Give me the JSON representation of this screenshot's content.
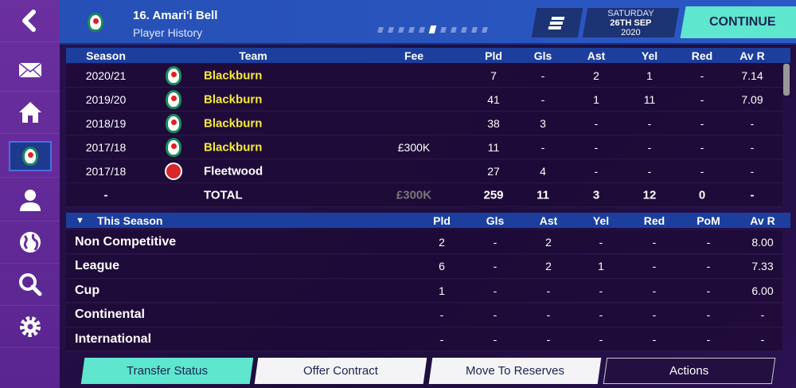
{
  "header": {
    "title": "16. Amari'i Bell",
    "subtitle": "Player History",
    "date_day": "SATURDAY",
    "date_main": "26TH SEP",
    "date_year": "2020",
    "continue_label": "CONTINUE",
    "page_dots_total": 11,
    "page_dots_active": 6
  },
  "sidebar": {
    "items": [
      {
        "icon": "back-icon"
      },
      {
        "icon": "mail-icon"
      },
      {
        "icon": "home-icon"
      },
      {
        "icon": "club-badge-icon",
        "selected": true
      },
      {
        "icon": "person-icon"
      },
      {
        "icon": "globe-icon"
      },
      {
        "icon": "search-icon"
      },
      {
        "icon": "gear-icon"
      }
    ]
  },
  "history": {
    "headers": [
      "Season",
      "Team",
      "Fee",
      "Pld",
      "Gls",
      "Ast",
      "Yel",
      "Red",
      "Av R"
    ],
    "rows": [
      {
        "season": "2020/21",
        "team": "Blackburn",
        "own": true,
        "fee": "",
        "pld": "7",
        "gls": "-",
        "ast": "2",
        "yel": "1",
        "red": "-",
        "avr": "7.14"
      },
      {
        "season": "2019/20",
        "team": "Blackburn",
        "own": true,
        "fee": "",
        "pld": "41",
        "gls": "-",
        "ast": "1",
        "yel": "11",
        "red": "-",
        "avr": "7.09"
      },
      {
        "season": "2018/19",
        "team": "Blackburn",
        "own": true,
        "fee": "",
        "pld": "38",
        "gls": "3",
        "ast": "-",
        "yel": "-",
        "red": "-",
        "avr": "-"
      },
      {
        "season": "2017/18",
        "team": "Blackburn",
        "own": true,
        "fee": "£300K",
        "pld": "11",
        "gls": "-",
        "ast": "-",
        "yel": "-",
        "red": "-",
        "avr": "-"
      },
      {
        "season": "2017/18",
        "team": "Fleetwood",
        "own": false,
        "fee": "",
        "pld": "27",
        "gls": "4",
        "ast": "-",
        "yel": "-",
        "red": "-",
        "avr": "-"
      }
    ],
    "total": {
      "season": "-",
      "team": "TOTAL",
      "fee": "£300K",
      "pld": "259",
      "gls": "11",
      "ast": "3",
      "yel": "12",
      "red": "0",
      "avr": "-"
    }
  },
  "this_season": {
    "title": "This Season",
    "headers": [
      "Pld",
      "Gls",
      "Ast",
      "Yel",
      "Red",
      "PoM",
      "Av R"
    ],
    "rows": [
      {
        "label": "Non Competitive",
        "v": [
          "2",
          "-",
          "2",
          "-",
          "-",
          "-",
          "8.00"
        ]
      },
      {
        "label": "League",
        "v": [
          "6",
          "-",
          "2",
          "1",
          "-",
          "-",
          "7.33"
        ]
      },
      {
        "label": "Cup",
        "v": [
          "1",
          "-",
          "-",
          "-",
          "-",
          "-",
          "6.00"
        ]
      },
      {
        "label": "Continental",
        "v": [
          "-",
          "-",
          "-",
          "-",
          "-",
          "-",
          "-"
        ]
      },
      {
        "label": "International",
        "v": [
          "-",
          "-",
          "-",
          "-",
          "-",
          "-",
          "-"
        ]
      }
    ]
  },
  "buttons": {
    "transfer_status": "Transfer Status",
    "offer_contract": "Offer Contract",
    "move_to_reserves": "Move To Reserves",
    "actions": "Actions"
  },
  "colors": {
    "accent": "#5ee6cf",
    "header_blue": "#2650b5",
    "own_team": "#f7ec3a"
  }
}
